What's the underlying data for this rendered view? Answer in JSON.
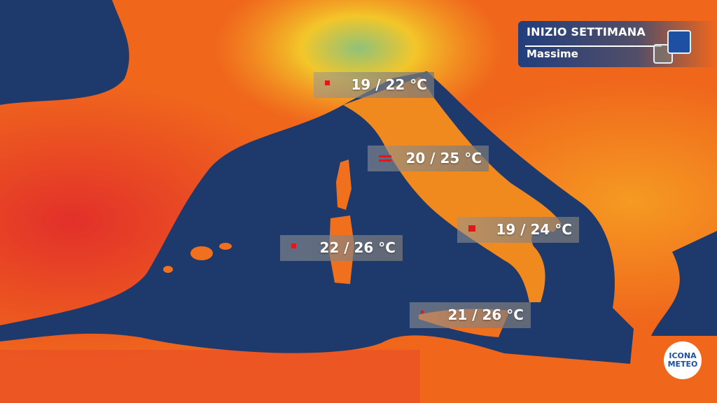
{
  "header": {
    "title": "INIZIO SETTIMANA",
    "subtitle": "Massime"
  },
  "colors": {
    "sea": "#1e3a6c",
    "land_warm": "#f0671c",
    "land_hot": "#e63a26",
    "land_mild": "#f5a524",
    "accent_blue": "#1d4fa3"
  },
  "labels": [
    {
      "place_icon": "red-flag-icon",
      "text": "19 / 22 °C"
    },
    {
      "place_icon": "red-flag-icon",
      "text": "20 / 25 °C"
    },
    {
      "place_icon": "red-flag-icon",
      "text": "19 / 24 °C"
    },
    {
      "place_icon": "red-flag-icon",
      "text": "22 / 26 °C"
    },
    {
      "place_icon": "red-flag-icon",
      "text": "21 / 26 °C"
    }
  ],
  "logo": {
    "line1": "ICONA",
    "line2": "METEO"
  }
}
